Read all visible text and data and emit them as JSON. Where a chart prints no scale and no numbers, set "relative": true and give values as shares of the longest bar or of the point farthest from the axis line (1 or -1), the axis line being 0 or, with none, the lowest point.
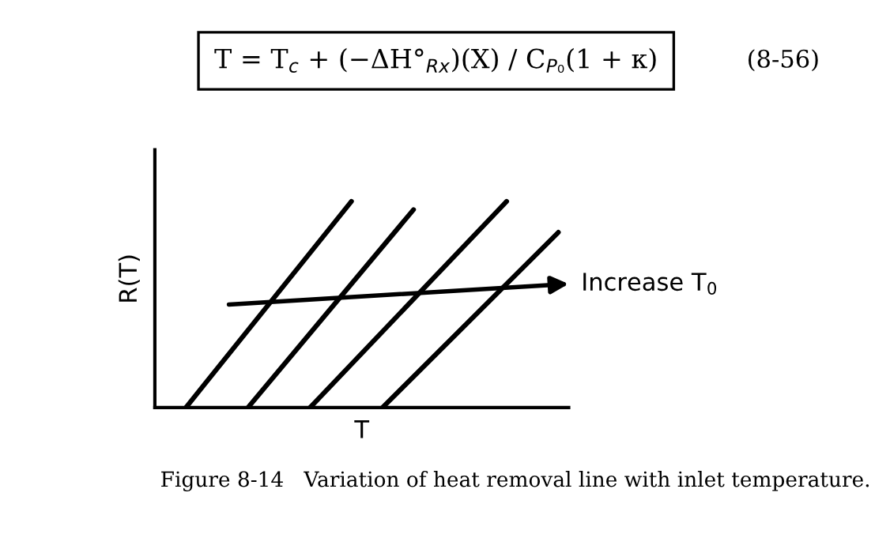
{
  "chart_data": {
    "type": "line",
    "relative": true,
    "xlabel": "T",
    "ylabel": "R(T)",
    "marker": "none",
    "line_style": "solid",
    "categories": [
      null,
      null,
      null,
      null,
      null,
      null,
      null,
      null,
      null,
      null,
      null,
      null,
      null,
      null,
      null,
      null,
      null,
      null,
      null,
      null,
      null,
      null,
      null,
      null,
      null,
      null,
      null,
      null,
      null,
      null,
      null,
      null,
      null,
      null,
      null,
      null,
      null,
      null,
      null,
      null,
      null
    ],
    "series": [
      {
        "color": "#000000",
        "values": [
          null,
          null,
          null,
          0,
          null,
          null,
          null,
          null,
          null,
          null,
          null,
          null,
          null,
          null,
          null,
          null,
          null,
          null,
          null,
          1,
          null,
          null,
          null,
          null,
          null,
          null,
          null,
          null,
          null,
          null,
          null,
          null,
          null,
          null,
          null,
          null,
          null,
          null,
          null,
          null,
          null
        ]
      },
      {
        "color": "#000000",
        "values": [
          null,
          null,
          null,
          null,
          null,
          null,
          null,
          null,
          null,
          0,
          null,
          null,
          null,
          null,
          null,
          null,
          null,
          null,
          null,
          null,
          null,
          null,
          null,
          null,
          null,
          0.96,
          null,
          null,
          null,
          null,
          null,
          null,
          null,
          null,
          null,
          null,
          null,
          null,
          null,
          null,
          null
        ]
      },
      {
        "color": "#000000",
        "values": [
          null,
          null,
          null,
          null,
          null,
          null,
          null,
          null,
          null,
          null,
          null,
          null,
          null,
          null,
          null,
          0,
          null,
          null,
          null,
          null,
          null,
          null,
          null,
          null,
          null,
          null,
          null,
          null,
          null,
          null,
          null,
          null,
          null,
          null,
          1,
          null,
          null,
          null,
          null,
          null,
          null
        ]
      },
      {
        "color": "#000000",
        "values": [
          null,
          null,
          null,
          null,
          null,
          null,
          null,
          null,
          null,
          null,
          null,
          null,
          null,
          null,
          null,
          null,
          null,
          null,
          null,
          null,
          null,
          null,
          0,
          null,
          null,
          null,
          null,
          null,
          null,
          null,
          null,
          null,
          null,
          null,
          null,
          null,
          null,
          null,
          null,
          0.85,
          null
        ]
      }
    ],
    "annotations": [
      "T = T$_{c}$ + (−ΔH°$_{Rx}$)(X) / C$_{P₀}$(1 + κ)",
      "(8-56)",
      "Increase T$_{0}$",
      "Figure 8-14   Variation of heat removal line with inlet temperature."
    ]
  }
}
